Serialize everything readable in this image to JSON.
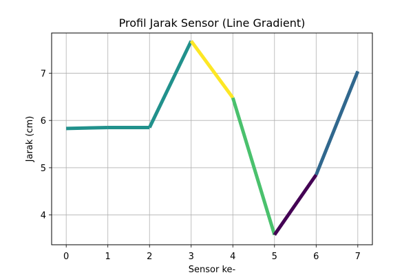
{
  "chart_data": {
    "type": "line",
    "title": "Profil Jarak Sensor (Line Gradient)",
    "xlabel": "Sensor ke-",
    "ylabel": "Jarak (cm)",
    "x": [
      0,
      1,
      2,
      3,
      4,
      5,
      6,
      7
    ],
    "y": [
      5.83,
      5.85,
      5.85,
      7.68,
      6.48,
      3.58,
      4.85,
      7.04
    ],
    "segment_colors": [
      "#21918c",
      "#21918c",
      "#21918c",
      "#fde725",
      "#4ac16d",
      "#440154",
      "#31688e"
    ],
    "colormap": "viridis",
    "xlim": [
      -0.35,
      7.35
    ],
    "ylim": [
      3.37,
      7.85
    ],
    "xticks": [
      "0",
      "1",
      "2",
      "3",
      "4",
      "5",
      "6",
      "7"
    ],
    "yticks": [
      "4",
      "5",
      "6",
      "7"
    ],
    "grid": true,
    "legend": "none"
  }
}
